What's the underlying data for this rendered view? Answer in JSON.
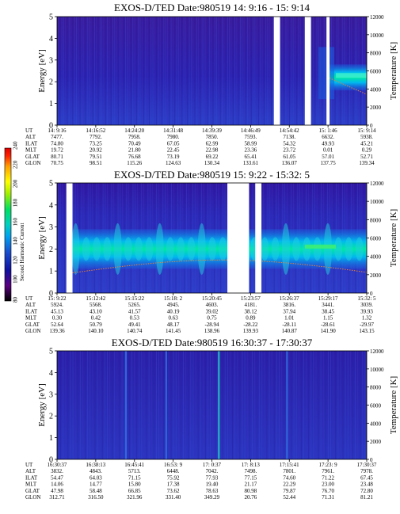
{
  "chart_data": [
    {
      "type": "heatmap",
      "title": "EXOS-D/TED   Date:980519  14: 9:16 - 15: 9:14",
      "ylabel": "Energy [eV]",
      "y2label": "Temperature [K]",
      "ylim": [
        0,
        5
      ],
      "y_ticks": [
        "0",
        "1",
        "2",
        "3",
        "4",
        "5"
      ],
      "y2lim": [
        0,
        12000
      ],
      "y2_ticks": [
        "0",
        "2000",
        "4000",
        "6000",
        "8000",
        "10000",
        "12000"
      ],
      "gaps": [
        [
          0.7,
          0.72
        ],
        [
          0.8,
          0.82
        ],
        [
          0.87,
          0.88
        ]
      ],
      "band": {
        "start": 0.88,
        "end": 1.0,
        "center_eV": 2.2,
        "width_eV": 0.6
      },
      "table_labels": [
        "UT",
        "ALT",
        "ILAT",
        "MLT",
        "GLAT",
        "GLON"
      ],
      "table": [
        [
          "14: 9:16",
          "14:16:52",
          "14:24:20",
          "14:31:48",
          "14:39:39",
          "14:46:49",
          "14:54:42",
          "15: 1:46",
          "15: 9:14"
        ],
        [
          "7477.",
          "7792.",
          "7958.",
          "7980.",
          "7850.",
          "7593.",
          "7138.",
          "6632.",
          "5938."
        ],
        [
          "74.80",
          "73.25",
          "70.49",
          "67.05",
          "62.99",
          "58.99",
          "54.32",
          "49.93",
          "45.21"
        ],
        [
          "19.72",
          "20.92",
          "21.80",
          "22.45",
          "22.98",
          "23.36",
          "23.72",
          "0.01",
          "0.29"
        ],
        [
          "80.71",
          "79.51",
          "76.68",
          "73.19",
          "69.22",
          "65.41",
          "61.05",
          "57.01",
          "52.71"
        ],
        [
          "70.75",
          "98.51",
          "115.26",
          "124.63",
          "130.34",
          "133.61",
          "136.07",
          "137.75",
          "139.34"
        ]
      ]
    },
    {
      "type": "heatmap",
      "title": "EXOS-D/TED   Date:980519  15: 9:22 - 15:32: 5",
      "ylabel": "Energy [eV]",
      "y2label": "Temperature [K]",
      "ylim": [
        0,
        5
      ],
      "y_ticks": [
        "0",
        "1",
        "2",
        "3",
        "4",
        "5"
      ],
      "y2lim": [
        0,
        12000
      ],
      "y2_ticks": [
        "0",
        "2000",
        "4000",
        "6000",
        "8000",
        "10000",
        "12000"
      ],
      "gaps": [
        [
          0.03,
          0.05
        ],
        [
          0.55,
          0.62
        ],
        [
          0.64,
          0.66
        ]
      ],
      "band": {
        "start": 0.05,
        "end": 1.0,
        "center_eV": 2.0,
        "width_eV": 0.9
      },
      "table_labels": [
        "UT",
        "ALT",
        "ILAT",
        "MLT",
        "GLAT",
        "GLON"
      ],
      "table": [
        [
          "15: 9:22",
          "15:12:42",
          "15:15:22",
          "15:18: 2",
          "15:20:45",
          "15:23:57",
          "15:26:37",
          "15:29:17",
          "15:32: 5"
        ],
        [
          "5924.",
          "5568.",
          "5265.",
          "4945.",
          "4603.",
          "4181.",
          "3816.",
          "3441.",
          "3039."
        ],
        [
          "45.13",
          "43.10",
          "41.57",
          "40.19",
          "39.02",
          "38.12",
          "37.94",
          "38.45",
          "39.93"
        ],
        [
          "0.30",
          "0.42",
          "0.53",
          "0.63",
          "0.75",
          "0.89",
          "1.01",
          "1.15",
          "1.32"
        ],
        [
          "52.64",
          "50.79",
          "49.41",
          "48.17",
          "-28.94",
          "-28.22",
          "-28.11",
          "-28.61",
          "-29.97"
        ],
        [
          "139.36",
          "140.10",
          "140.74",
          "141.45",
          "138.96",
          "139.93",
          "140.87",
          "141.90",
          "143.15"
        ]
      ]
    },
    {
      "type": "heatmap",
      "title": "EXOS-D/TED   Date:980519  16:30:37 - 17:30:37",
      "ylabel": "Energy [eV]",
      "y2label": "Temperature [K]",
      "ylim": [
        0,
        5
      ],
      "y_ticks": [
        "0",
        "1",
        "2",
        "3",
        "4",
        "5"
      ],
      "y2lim": [
        0,
        12000
      ],
      "y2_ticks": [
        "0",
        "2000",
        "4000",
        "6000",
        "8000",
        "10000",
        "12000"
      ],
      "gaps": [],
      "streaks": [
        0.22,
        0.35,
        0.52,
        0.74
      ],
      "table_labels": [
        "UT",
        "ALT",
        "ILAT",
        "MLT",
        "GLAT",
        "GLON"
      ],
      "table": [
        [
          "16:30:37",
          "16:38:13",
          "16:45:41",
          "16:53: 9",
          "17: 0:37",
          "17: 8:13",
          "17:15:41",
          "17:23: 9",
          "17:30:37"
        ],
        [
          "3832.",
          "4843.",
          "5713.",
          "6448.",
          "7042.",
          "7498.",
          "7801.",
          "7961.",
          "7978."
        ],
        [
          "54.47",
          "64.03",
          "71.15",
          "75.92",
          "77.93",
          "77.15",
          "74.60",
          "71.22",
          "67.45"
        ],
        [
          "14.06",
          "14.77",
          "15.80",
          "17.38",
          "19.40",
          "21.17",
          "22.29",
          "23.00",
          "23.48"
        ],
        [
          "47.98",
          "58.48",
          "66.85",
          "73.62",
          "78.63",
          "80.98",
          "79.87",
          "76.70",
          "72.80"
        ],
        [
          "312.71",
          "316.50",
          "321.96",
          "331.40",
          "349.29",
          "20.76",
          "52.44",
          "71.31",
          "81.21"
        ]
      ]
    }
  ],
  "colorbar": {
    "label": "Second Harmonic Current",
    "ticks": [
      "80",
      "100",
      "120",
      "140",
      "160",
      "180",
      "200",
      "220",
      "240"
    ],
    "colors": [
      "#000000",
      "#5a0080",
      "#1010a0",
      "#1a4fd0",
      "#00a0f0",
      "#00d0c0",
      "#00e060",
      "#a0f000",
      "#ffff00",
      "#ffa000",
      "#ff2000",
      "#e00000"
    ]
  }
}
